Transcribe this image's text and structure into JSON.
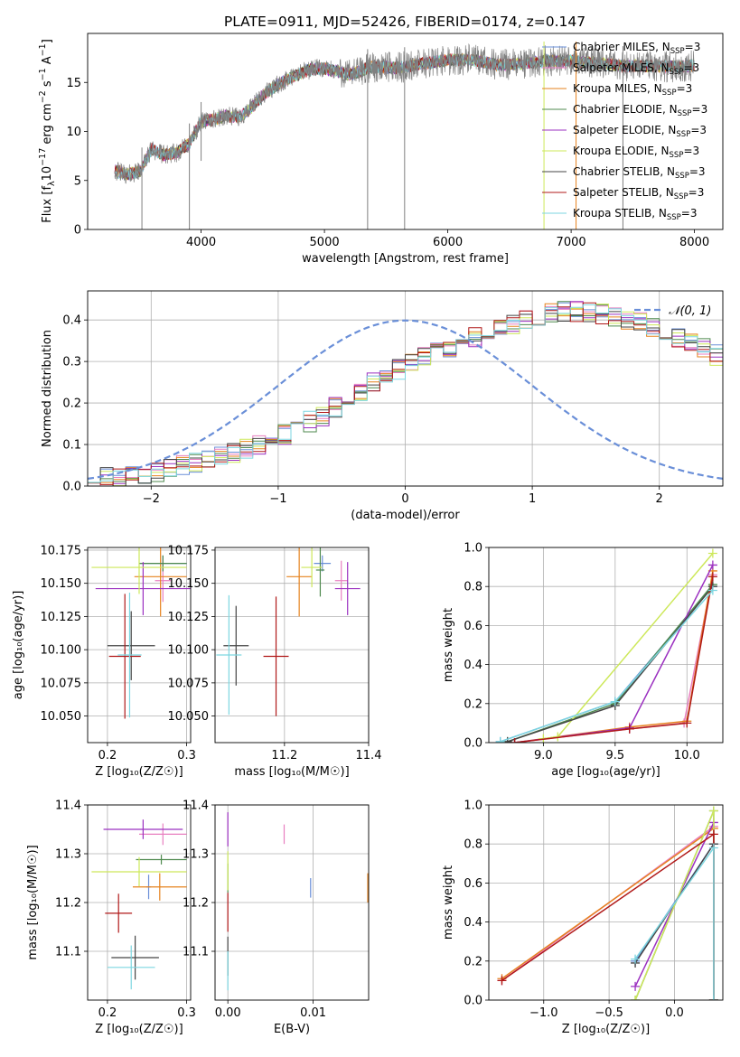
{
  "colors": {
    "Chabrier MILES": "#6a8fd8",
    "Salpeter MILES": "#e87fc0",
    "Kroupa MILES": "#e6821e",
    "Chabrier ELODIE": "#4f8a4f",
    "Salpeter ELODIE": "#9b30c0",
    "Kroupa ELODIE": "#cde85a",
    "Chabrier STELIB": "#444444",
    "Salpeter STELIB": "#b01818",
    "Kroupa STELIB": "#7dd6e0",
    "gray": "#808080",
    "normal": "#6a8fd8",
    "grid": "#b0b0b0"
  },
  "chart_data": [
    {
      "id": "spectrum",
      "type": "line",
      "title": "PLATE=0911, MJD=52426, FIBERID=0174, z=0.147",
      "xlabel": "wavelength [Angstrom, rest frame]",
      "ylabel": {
        "pre": "Flux [f",
        "sub1": "λ",
        "mid": "10",
        "sup1": "−17",
        "post1": " erg cm",
        "sup2": "−2",
        "post2": " s",
        "sup3": "−1",
        "post3": " A",
        "sup4": "−1",
        "end": "]"
      },
      "xlim": [
        3080,
        8230
      ],
      "ylim": [
        0,
        20
      ],
      "xticks": [
        4000,
        5000,
        6000,
        7000,
        8000
      ],
      "yticks": [
        0,
        5,
        10,
        15
      ],
      "continuum": [
        [
          3300,
          6.0
        ],
        [
          3400,
          5.6
        ],
        [
          3500,
          5.9
        ],
        [
          3600,
          8.2
        ],
        [
          3700,
          7.6
        ],
        [
          3800,
          7.8
        ],
        [
          3900,
          8.7
        ],
        [
          4000,
          11.0
        ],
        [
          4100,
          11.2
        ],
        [
          4200,
          11.6
        ],
        [
          4300,
          11.4
        ],
        [
          4400,
          12.3
        ],
        [
          4500,
          13.7
        ],
        [
          4600,
          14.6
        ],
        [
          4700,
          15.3
        ],
        [
          4800,
          15.9
        ],
        [
          4900,
          16.4
        ],
        [
          5000,
          16.4
        ],
        [
          5200,
          15.8
        ],
        [
          5400,
          16.6
        ],
        [
          5600,
          16.5
        ],
        [
          5800,
          16.9
        ],
        [
          6000,
          17.3
        ],
        [
          6200,
          17.3
        ],
        [
          6400,
          16.8
        ],
        [
          6600,
          16.9
        ],
        [
          6800,
          17.2
        ],
        [
          7000,
          17.2
        ],
        [
          7200,
          17.0
        ],
        [
          7400,
          16.7
        ],
        [
          7600,
          16.7
        ],
        [
          7800,
          16.6
        ],
        [
          8000,
          16.7
        ]
      ],
      "spikes": [
        [
          3520,
          0
        ],
        [
          3905,
          0
        ],
        [
          4000,
          7.0
        ],
        [
          5350,
          0
        ],
        [
          5650,
          0
        ],
        [
          6780,
          0
        ],
        [
          7040,
          0
        ],
        [
          7420,
          0
        ]
      ],
      "legend": {
        "position": "upper right",
        "entries": [
          {
            "base": "Chabrier MILES, N",
            "sub": "SSP",
            "tail": "=3"
          },
          {
            "base": "Salpeter MILES, N",
            "sub": "SSP",
            "tail": "=3"
          },
          {
            "base": "Kroupa MILES, N",
            "sub": "SSP",
            "tail": "=3"
          },
          {
            "base": "Chabrier ELODIE, N",
            "sub": "SSP",
            "tail": "=3"
          },
          {
            "base": "Salpeter ELODIE, N",
            "sub": "SSP",
            "tail": "=3"
          },
          {
            "base": "Kroupa ELODIE, N",
            "sub": "SSP",
            "tail": "=3"
          },
          {
            "base": "Chabrier STELIB, N",
            "sub": "SSP",
            "tail": "=3"
          },
          {
            "base": "Salpeter STELIB, N",
            "sub": "SSP",
            "tail": "=3"
          },
          {
            "base": "Kroupa STELIB, N",
            "sub": "SSP",
            "tail": "=3"
          }
        ]
      }
    },
    {
      "id": "residuals",
      "type": "line",
      "xlabel": "(data-model)/error",
      "ylabel": "Normed distribution",
      "xlim": [
        -2.5,
        2.5
      ],
      "ylim": [
        0,
        0.47
      ],
      "xticks": [
        -2,
        -1,
        0,
        1,
        2
      ],
      "yticks": [
        0.0,
        0.1,
        0.2,
        0.3,
        0.4
      ],
      "grid": true,
      "bin_width": 0.1,
      "histogram_base": [
        0.02,
        0.02,
        0.02,
        0.025,
        0.03,
        0.035,
        0.04,
        0.05,
        0.055,
        0.06,
        0.07,
        0.08,
        0.09,
        0.1,
        0.11,
        0.125,
        0.14,
        0.155,
        0.17,
        0.19,
        0.21,
        0.23,
        0.25,
        0.265,
        0.28,
        0.3,
        0.31,
        0.32,
        0.33,
        0.345,
        0.36,
        0.375,
        0.385,
        0.39,
        0.4,
        0.41,
        0.42,
        0.42,
        0.42,
        0.42,
        0.415,
        0.41,
        0.4,
        0.395,
        0.385,
        0.375,
        0.36,
        0.345,
        0.33,
        0.315,
        0.3,
        0.285,
        0.27,
        0.25,
        0.23,
        0.21,
        0.195,
        0.18,
        0.16,
        0.145,
        0.13,
        0.12,
        0.105,
        0.095,
        0.085,
        0.075,
        0.07,
        0.06,
        0.055,
        0.05
      ],
      "histogram_start": -2.5,
      "normal_label": "𝒩(0, 1)",
      "legend_position": "upper right"
    },
    {
      "id": "age-vs-Z",
      "type": "scatter",
      "xlabel": "Z [log₁₀(Z/Z☉)]",
      "ylabel": "age  [log₁₀(age/yr)]",
      "xlim": [
        0.175,
        0.305
      ],
      "ylim": [
        10.03,
        10.177
      ],
      "xticks": [
        0.2,
        0.3
      ],
      "yticks": [
        10.05,
        10.075,
        10.1,
        10.125,
        10.15,
        10.175
      ],
      "grid": true,
      "points": [
        {
          "model": "Chabrier MILES",
          "x": 0.27,
          "y": 10.165,
          "xerr": 0.03,
          "yerr": 0.006
        },
        {
          "model": "Salpeter MILES",
          "x": 0.27,
          "y": 10.152,
          "xerr": 0.01,
          "yerr": 0.016
        },
        {
          "model": "Kroupa MILES",
          "x": 0.267,
          "y": 10.155,
          "xerr": 0.033,
          "yerr": 0.03
        },
        {
          "model": "Chabrier ELODIE",
          "x": 0.27,
          "y": 10.165,
          "xerr": 0.03,
          "yerr": 0.006
        },
        {
          "model": "Salpeter ELODIE",
          "x": 0.245,
          "y": 10.146,
          "xerr": 0.06,
          "yerr": 0.02
        },
        {
          "model": "Kroupa ELODIE",
          "x": 0.24,
          "y": 10.162,
          "xerr": 0.06,
          "yerr": 0.02
        },
        {
          "model": "Chabrier STELIB",
          "x": 0.23,
          "y": 10.103,
          "xerr": 0.03,
          "yerr": 0.026
        },
        {
          "model": "Salpeter STELIB",
          "x": 0.222,
          "y": 10.095,
          "xerr": 0.02,
          "yerr": 0.047
        },
        {
          "model": "Kroupa STELIB",
          "x": 0.228,
          "y": 10.096,
          "xerr": 0.015,
          "yerr": 0.047
        }
      ]
    },
    {
      "id": "age-vs-mass",
      "type": "scatter",
      "xlabel": "mass [log₁₀(M/M☉)]",
      "ylabel": "",
      "xlim": [
        11.035,
        11.4
      ],
      "ylim": [
        10.03,
        10.177
      ],
      "xticks": [
        11.2,
        11.4
      ],
      "yticks": [
        10.05,
        10.075,
        10.1,
        10.125,
        10.15,
        10.175
      ],
      "grid": true,
      "points": [
        {
          "model": "Chabrier MILES",
          "x": 11.29,
          "y": 10.165,
          "xerr": 0.02,
          "yerr": 0.006
        },
        {
          "model": "Salpeter MILES",
          "x": 11.335,
          "y": 10.152,
          "xerr": 0.015,
          "yerr": 0.015
        },
        {
          "model": "Kroupa MILES",
          "x": 11.235,
          "y": 10.155,
          "xerr": 0.03,
          "yerr": 0.03
        },
        {
          "model": "Chabrier ELODIE",
          "x": 11.285,
          "y": 10.16,
          "xerr": 0.01,
          "yerr": 0.02
        },
        {
          "model": "Salpeter ELODIE",
          "x": 11.35,
          "y": 10.146,
          "xerr": 0.03,
          "yerr": 0.02
        },
        {
          "model": "Kroupa ELODIE",
          "x": 11.265,
          "y": 10.162,
          "xerr": 0.025,
          "yerr": 0.015
        },
        {
          "model": "Chabrier STELIB",
          "x": 11.085,
          "y": 10.103,
          "xerr": 0.03,
          "yerr": 0.03
        },
        {
          "model": "Salpeter STELIB",
          "x": 11.18,
          "y": 10.095,
          "xerr": 0.03,
          "yerr": 0.045
        },
        {
          "model": "Kroupa STELIB",
          "x": 11.068,
          "y": 10.096,
          "xerr": 0.03,
          "yerr": 0.045
        }
      ]
    },
    {
      "id": "mw-vs-age",
      "type": "line",
      "xlabel": "age  [log₁₀(age/yr)]",
      "ylabel": "mass weight",
      "xlim": [
        8.62,
        10.25
      ],
      "ylim": [
        0,
        1
      ],
      "xticks": [
        9.0,
        9.5,
        10.0
      ],
      "yticks": [
        0.0,
        0.2,
        0.4,
        0.6,
        0.8,
        1.0
      ],
      "grid": true,
      "series": [
        {
          "model": "Chabrier MILES",
          "x": [
            8.7,
            9.5,
            10.18
          ],
          "y": [
            0.005,
            0.21,
            0.8
          ]
        },
        {
          "model": "Salpeter MILES",
          "x": [
            8.8,
            9.6,
            9.98,
            10.18
          ],
          "y": [
            0.0,
            0.07,
            0.1,
            0.86
          ]
        },
        {
          "model": "Kroupa MILES",
          "x": [
            8.8,
            9.6,
            10.0,
            10.18
          ],
          "y": [
            0.0,
            0.08,
            0.11,
            0.88
          ]
        },
        {
          "model": "Chabrier ELODIE",
          "x": [
            8.75,
            9.5,
            10.18
          ],
          "y": [
            0.005,
            0.2,
            0.81
          ]
        },
        {
          "model": "Salpeter ELODIE",
          "x": [
            8.8,
            9.6,
            10.18
          ],
          "y": [
            0.0,
            0.075,
            0.91
          ]
        },
        {
          "model": "Kroupa ELODIE",
          "x": [
            9.0,
            9.1,
            10.18
          ],
          "y": [
            0.02,
            0.03,
            0.97
          ]
        },
        {
          "model": "Chabrier STELIB",
          "x": [
            8.75,
            9.5,
            10.18
          ],
          "y": [
            0.005,
            0.19,
            0.8
          ]
        },
        {
          "model": "Salpeter STELIB",
          "x": [
            8.8,
            9.6,
            10.0,
            10.18
          ],
          "y": [
            0.0,
            0.07,
            0.1,
            0.85
          ]
        },
        {
          "model": "Kroupa STELIB",
          "x": [
            8.7,
            9.5,
            10.18
          ],
          "y": [
            0.005,
            0.21,
            0.78
          ]
        }
      ]
    },
    {
      "id": "mass-vs-Z",
      "type": "scatter",
      "xlabel": "Z [log₁₀(Z/Z☉)]",
      "ylabel": "mass [log₁₀(M/M☉)]",
      "xlim": [
        0.175,
        0.305
      ],
      "ylim": [
        11.0,
        11.4
      ],
      "xticks": [
        0.2,
        0.3
      ],
      "yticks": [
        11.1,
        11.2,
        11.3,
        11.4
      ],
      "grid": true,
      "points": [
        {
          "model": "Chabrier MILES",
          "x": 0.252,
          "y": 11.232,
          "xerr": 0.003,
          "yerr": 0.025
        },
        {
          "model": "Salpeter MILES",
          "x": 0.27,
          "y": 11.34,
          "xerr": 0.03,
          "yerr": 0.022
        },
        {
          "model": "Kroupa MILES",
          "x": 0.266,
          "y": 11.232,
          "xerr": 0.034,
          "yerr": 0.028
        },
        {
          "model": "Chabrier ELODIE",
          "x": 0.268,
          "y": 11.288,
          "xerr": 0.032,
          "yerr": 0.01
        },
        {
          "model": "Salpeter ELODIE",
          "x": 0.245,
          "y": 11.35,
          "xerr": 0.05,
          "yerr": 0.02
        },
        {
          "model": "Kroupa ELODIE",
          "x": 0.24,
          "y": 11.263,
          "xerr": 0.06,
          "yerr": 0.03
        },
        {
          "model": "Chabrier STELIB",
          "x": 0.235,
          "y": 11.087,
          "xerr": 0.03,
          "yerr": 0.045
        },
        {
          "model": "Salpeter STELIB",
          "x": 0.214,
          "y": 11.178,
          "xerr": 0.017,
          "yerr": 0.04
        },
        {
          "model": "Kroupa STELIB",
          "x": 0.23,
          "y": 11.067,
          "xerr": 0.03,
          "yerr": 0.045
        }
      ]
    },
    {
      "id": "mass-vs-EBV",
      "type": "scatter",
      "xlabel": "E(B-V)",
      "ylabel": "",
      "xlim": [
        -0.0015,
        0.0165
      ],
      "ylim": [
        11.0,
        11.4
      ],
      "xticks": [
        0.0,
        0.01
      ],
      "yticks": [
        11.1,
        11.2,
        11.3,
        11.4
      ],
      "grid": true,
      "points": [
        {
          "model": "Chabrier MILES",
          "x": 0.0097,
          "y": 11.23,
          "xerr": 0,
          "yerr": 0.02
        },
        {
          "model": "Salpeter MILES",
          "x": 0.0066,
          "y": 11.34,
          "xerr": 0,
          "yerr": 0.02
        },
        {
          "model": "Kroupa MILES",
          "x": 0.0164,
          "y": 11.23,
          "xerr": 0,
          "yerr": 0.03
        },
        {
          "model": "Chabrier ELODIE",
          "x": 0.0,
          "y": 11.25,
          "xerr": 0,
          "yerr": 0.03
        },
        {
          "model": "Salpeter ELODIE",
          "x": 0.0,
          "y": 11.35,
          "xerr": 0,
          "yerr": 0.035
        },
        {
          "model": "Kroupa ELODIE",
          "x": 0.0,
          "y": 11.265,
          "xerr": 0,
          "yerr": 0.04
        },
        {
          "model": "Chabrier STELIB",
          "x": 0.0,
          "y": 11.09,
          "xerr": 0,
          "yerr": 0.04
        },
        {
          "model": "Salpeter STELIB",
          "x": 0.0,
          "y": 11.18,
          "xerr": 0,
          "yerr": 0.04
        },
        {
          "model": "Kroupa STELIB",
          "x": 0.0,
          "y": 11.06,
          "xerr": 0,
          "yerr": 0.04
        }
      ]
    },
    {
      "id": "mw-vs-Z",
      "type": "line",
      "xlabel": "Z [log₁₀(Z/Z☉)]",
      "ylabel": "mass weight",
      "xlim": [
        -1.42,
        0.37
      ],
      "ylim": [
        0,
        1
      ],
      "xticks": [
        -1.0,
        -0.5,
        0.0
      ],
      "yticks": [
        0.0,
        0.2,
        0.4,
        0.6,
        0.8,
        1.0
      ],
      "grid": true,
      "series": [
        {
          "model": "Chabrier MILES",
          "x": [
            -0.3,
            0.3,
            0.3
          ],
          "y": [
            0.2,
            0.8,
            0.0
          ]
        },
        {
          "model": "Salpeter MILES",
          "x": [
            -1.32,
            0.3,
            0.3
          ],
          "y": [
            0.1,
            0.89,
            0.0
          ]
        },
        {
          "model": "Kroupa MILES",
          "x": [
            -1.32,
            0.3,
            0.3
          ],
          "y": [
            0.11,
            0.88,
            0.0
          ]
        },
        {
          "model": "Chabrier ELODIE",
          "x": [
            -0.3,
            0.3,
            0.3
          ],
          "y": [
            0.0,
            0.97,
            0.0
          ]
        },
        {
          "model": "Salpeter ELODIE",
          "x": [
            -0.3,
            0.3,
            0.3
          ],
          "y": [
            0.07,
            0.91,
            0.0
          ]
        },
        {
          "model": "Kroupa ELODIE",
          "x": [
            -0.3,
            0.3,
            0.3
          ],
          "y": [
            0.0,
            0.97,
            0.0
          ]
        },
        {
          "model": "Chabrier STELIB",
          "x": [
            -0.3,
            0.3,
            0.3
          ],
          "y": [
            0.19,
            0.8,
            0.0
          ]
        },
        {
          "model": "Salpeter STELIB",
          "x": [
            -1.32,
            0.3,
            0.3
          ],
          "y": [
            0.1,
            0.85,
            0.0
          ]
        },
        {
          "model": "Kroupa STELIB",
          "x": [
            -0.3,
            0.3,
            0.3
          ],
          "y": [
            0.21,
            0.78,
            0.0
          ]
        }
      ]
    }
  ]
}
